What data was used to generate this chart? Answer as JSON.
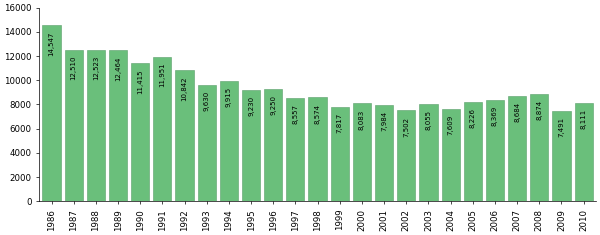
{
  "years": [
    "1986",
    "1987",
    "1988",
    "1989",
    "1990",
    "1991",
    "1992",
    "1993",
    "1994",
    "1995",
    "1996",
    "1997",
    "1998",
    "1999",
    "2000",
    "2001",
    "2002",
    "2003",
    "2004",
    "2005",
    "2006",
    "2007",
    "2008",
    "2009",
    "2010"
  ],
  "values": [
    14547,
    12510,
    12523,
    12464,
    11415,
    11951,
    10842,
    9630,
    9915,
    9230,
    9250,
    8557,
    8574,
    7817,
    8083,
    7984,
    7502,
    8055,
    7609,
    8226,
    8369,
    8684,
    8874,
    7491,
    8111
  ],
  "bar_color": "#6abf7b",
  "bar_edge_color": "#5a9f6a",
  "bar_width": 0.82,
  "ylim": [
    0,
    16000
  ],
  "yticks": [
    0,
    2000,
    4000,
    6000,
    8000,
    10000,
    12000,
    14000,
    16000
  ],
  "label_fontsize": 5.0,
  "tick_fontsize": 6.2,
  "background_color": "#ffffff",
  "value_labels": [
    "14,547",
    "12,510",
    "12,523",
    "12,464",
    "11,415",
    "11,951",
    "10,842",
    "9,630",
    "9,915",
    "9,230",
    "9,250",
    "8,557",
    "8,574",
    "7,817",
    "8,083",
    "7,984",
    "7,502",
    "8,055",
    "7,609",
    "8,226",
    "8,369",
    "8,684",
    "8,874",
    "7,491",
    "8,111"
  ]
}
